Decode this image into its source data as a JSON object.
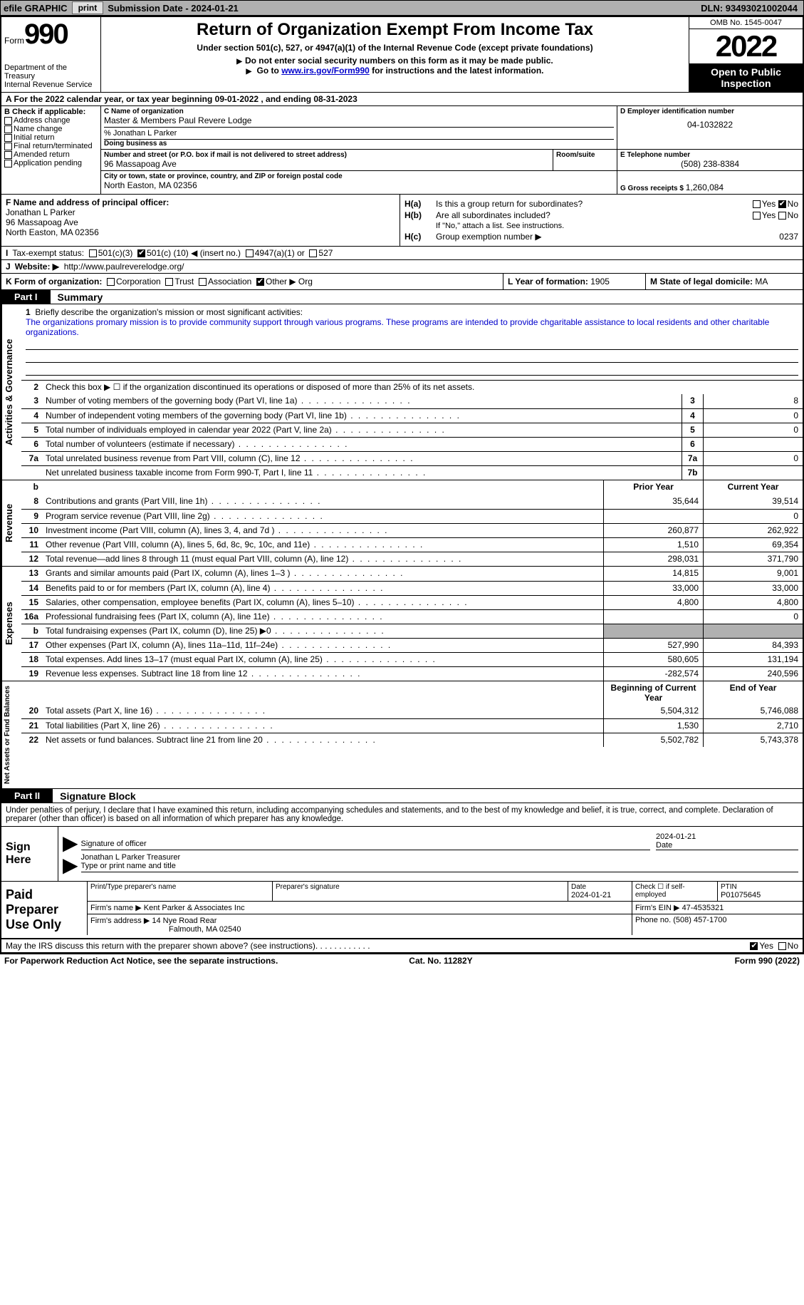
{
  "topbar": {
    "efile_label": "efile GRAPHIC",
    "print_btn": "print",
    "sub_date_label": "Submission Date - ",
    "sub_date": "2024-01-21",
    "dln_label": "DLN: ",
    "dln": "93493021002044"
  },
  "header": {
    "form_word": "Form",
    "form_number": "990",
    "dept": "Department of the Treasury",
    "irs": "Internal Revenue Service",
    "title": "Return of Organization Exempt From Income Tax",
    "subtitle": "Under section 501(c), 527, or 4947(a)(1) of the Internal Revenue Code (except private foundations)",
    "note1": "Do not enter social security numbers on this form as it may be made public.",
    "note2_pre": "Go to ",
    "note2_link": "www.irs.gov/Form990",
    "note2_post": " for instructions and the latest information.",
    "omb": "OMB No. 1545-0047",
    "year": "2022",
    "open": "Open to Public Inspection"
  },
  "row_a": {
    "text": "A For the 2022 calendar year, or tax year beginning 09-01-2022    , and ending 08-31-2023"
  },
  "section_b": {
    "label": "B Check if applicable:",
    "opts": [
      "Address change",
      "Name change",
      "Initial return",
      "Final return/terminated",
      "Amended return",
      "Application pending"
    ]
  },
  "section_c": {
    "name_label": "C Name of organization",
    "name": "Master & Members Paul Revere Lodge",
    "care_of": "% Jonathan L Parker",
    "dba_label": "Doing business as",
    "street_label": "Number and street (or P.O. box if mail is not delivered to street address)",
    "street": "96 Massapoag Ave",
    "room_label": "Room/suite",
    "city_label": "City or town, state or province, country, and ZIP or foreign postal code",
    "city": "North Easton, MA  02356"
  },
  "section_d": {
    "label": "D Employer identification number",
    "value": "04-1032822"
  },
  "section_e": {
    "label": "E Telephone number",
    "value": "(508) 238-8384"
  },
  "section_g": {
    "label": "G Gross receipts $ ",
    "value": "1,260,084"
  },
  "section_f": {
    "label": "F  Name and address of principal officer:",
    "name": "Jonathan L Parker",
    "street": "96 Massapoag Ave",
    "city": "North Easton, MA  02356"
  },
  "section_h": {
    "a_label": "H(a)",
    "a_text": "Is this a group return for subordinates?",
    "a_yes": "Yes",
    "a_no": "No",
    "b_label": "H(b)",
    "b_text": "Are all subordinates included?",
    "b_note": "If \"No,\" attach a list. See instructions.",
    "c_label": "H(c)",
    "c_text": "Group exemption number ▶",
    "c_value": "0237"
  },
  "row_i": {
    "label": "I",
    "text": "Tax-exempt status:",
    "opt1": "501(c)(3)",
    "opt2_pre": "501(c) (",
    "opt2_val": "10",
    "opt2_post": ") ◀ (insert no.)",
    "opt3": "4947(a)(1) or",
    "opt4": "527"
  },
  "row_j": {
    "label": "J",
    "text": "Website: ▶",
    "url": "http://www.paulreverelodge.org/"
  },
  "row_k": {
    "label": "K Form of organization:",
    "opts": [
      "Corporation",
      "Trust",
      "Association",
      "Other ▶"
    ],
    "other_val": "Org"
  },
  "row_l": {
    "label": "L Year of formation: ",
    "value": "1905"
  },
  "row_m": {
    "label": "M State of legal domicile: ",
    "value": "MA"
  },
  "part1": {
    "tab": "Part I",
    "title": "Summary"
  },
  "summary": {
    "governance_label": "Activities & Governance",
    "line1_label": "1",
    "line1_text": "Briefly describe the organization's mission or most significant activities:",
    "mission": "The organizations promary mission is to provide community support through various programs. These programs are intended to provide chgaritable assistance to local residents and other charitable organizations.",
    "line2_label": "2",
    "line2_text": "Check this box ▶ ☐ if the organization discontinued its operations or disposed of more than 25% of its net assets.",
    "lines_gov": [
      {
        "num": "3",
        "text": "Number of voting members of the governing body (Part VI, line 1a)",
        "box": "3",
        "val": "8"
      },
      {
        "num": "4",
        "text": "Number of independent voting members of the governing body (Part VI, line 1b)",
        "box": "4",
        "val": "0"
      },
      {
        "num": "5",
        "text": "Total number of individuals employed in calendar year 2022 (Part V, line 2a)",
        "box": "5",
        "val": "0"
      },
      {
        "num": "6",
        "text": "Total number of volunteers (estimate if necessary)",
        "box": "6",
        "val": ""
      },
      {
        "num": "7a",
        "text": "Total unrelated business revenue from Part VIII, column (C), line 12",
        "box": "7a",
        "val": "0"
      },
      {
        "num": "",
        "text": "Net unrelated business taxable income from Form 990-T, Part I, line 11",
        "box": "7b",
        "val": ""
      }
    ],
    "prior_hdr": "Prior Year",
    "current_hdr": "Current Year",
    "revenue_label": "Revenue",
    "lines_rev": [
      {
        "num": "8",
        "text": "Contributions and grants (Part VIII, line 1h)",
        "p": "35,644",
        "c": "39,514"
      },
      {
        "num": "9",
        "text": "Program service revenue (Part VIII, line 2g)",
        "p": "",
        "c": "0"
      },
      {
        "num": "10",
        "text": "Investment income (Part VIII, column (A), lines 3, 4, and 7d )",
        "p": "260,877",
        "c": "262,922"
      },
      {
        "num": "11",
        "text": "Other revenue (Part VIII, column (A), lines 5, 6d, 8c, 9c, 10c, and 11e)",
        "p": "1,510",
        "c": "69,354"
      },
      {
        "num": "12",
        "text": "Total revenue—add lines 8 through 11 (must equal Part VIII, column (A), line 12)",
        "p": "298,031",
        "c": "371,790"
      }
    ],
    "expenses_label": "Expenses",
    "lines_exp": [
      {
        "num": "13",
        "text": "Grants and similar amounts paid (Part IX, column (A), lines 1–3 )",
        "p": "14,815",
        "c": "9,001"
      },
      {
        "num": "14",
        "text": "Benefits paid to or for members (Part IX, column (A), line 4)",
        "p": "33,000",
        "c": "33,000"
      },
      {
        "num": "15",
        "text": "Salaries, other compensation, employee benefits (Part IX, column (A), lines 5–10)",
        "p": "4,800",
        "c": "4,800"
      },
      {
        "num": "16a",
        "text": "Professional fundraising fees (Part IX, column (A), line 11e)",
        "p": "",
        "c": "0"
      },
      {
        "num": "b",
        "text": "Total fundraising expenses (Part IX, column (D), line 25) ▶0",
        "p": "SHADE",
        "c": "SHADE"
      },
      {
        "num": "17",
        "text": "Other expenses (Part IX, column (A), lines 11a–11d, 11f–24e)",
        "p": "527,990",
        "c": "84,393"
      },
      {
        "num": "18",
        "text": "Total expenses. Add lines 13–17 (must equal Part IX, column (A), line 25)",
        "p": "580,605",
        "c": "131,194"
      },
      {
        "num": "19",
        "text": "Revenue less expenses. Subtract line 18 from line 12",
        "p": "-282,574",
        "c": "240,596"
      }
    ],
    "net_label": "Net Assets or Fund Balances",
    "begin_hdr": "Beginning of Current Year",
    "end_hdr": "End of Year",
    "lines_net": [
      {
        "num": "20",
        "text": "Total assets (Part X, line 16)",
        "p": "5,504,312",
        "c": "5,746,088"
      },
      {
        "num": "21",
        "text": "Total liabilities (Part X, line 26)",
        "p": "1,530",
        "c": "2,710"
      },
      {
        "num": "22",
        "text": "Net assets or fund balances. Subtract line 21 from line 20",
        "p": "5,502,782",
        "c": "5,743,378"
      }
    ]
  },
  "part2": {
    "tab": "Part II",
    "title": "Signature Block"
  },
  "sig": {
    "intro": "Under penalties of perjury, I declare that I have examined this return, including accompanying schedules and statements, and to the best of my knowledge and belief, it is true, correct, and complete. Declaration of preparer (other than officer) is based on all information of which preparer has any knowledge.",
    "sign_here": "Sign Here",
    "sig_officer_lbl": "Signature of officer",
    "date_lbl": "Date",
    "sig_date": "2024-01-21",
    "name_title": "Jonathan L Parker  Treasurer",
    "name_title_lbl": "Type or print name and title"
  },
  "prep": {
    "label": "Paid Preparer Use Only",
    "print_name_lbl": "Print/Type preparer's name",
    "prep_sig_lbl": "Preparer's signature",
    "date_lbl": "Date",
    "date": "2024-01-21",
    "check_lbl": "Check ☐ if self-employed",
    "ptin_lbl": "PTIN",
    "ptin": "P01075645",
    "firm_name_lbl": "Firm's name      ▶",
    "firm_name": "Kent Parker & Associates Inc",
    "firm_ein_lbl": "Firm's EIN ▶",
    "firm_ein": "47-4535321",
    "firm_addr_lbl": "Firm's address ▶",
    "firm_addr1": "14 Nye Road Rear",
    "firm_addr2": "Falmouth, MA  02540",
    "phone_lbl": "Phone no. ",
    "phone": "(508) 457-1700"
  },
  "footer": {
    "discuss": "May the IRS discuss this return with the preparer shown above? (see instructions)",
    "yes": "Yes",
    "no": "No",
    "paperwork": "For Paperwork Reduction Act Notice, see the separate instructions.",
    "cat": "Cat. No. 11282Y",
    "form": "Form 990 (2022)"
  }
}
